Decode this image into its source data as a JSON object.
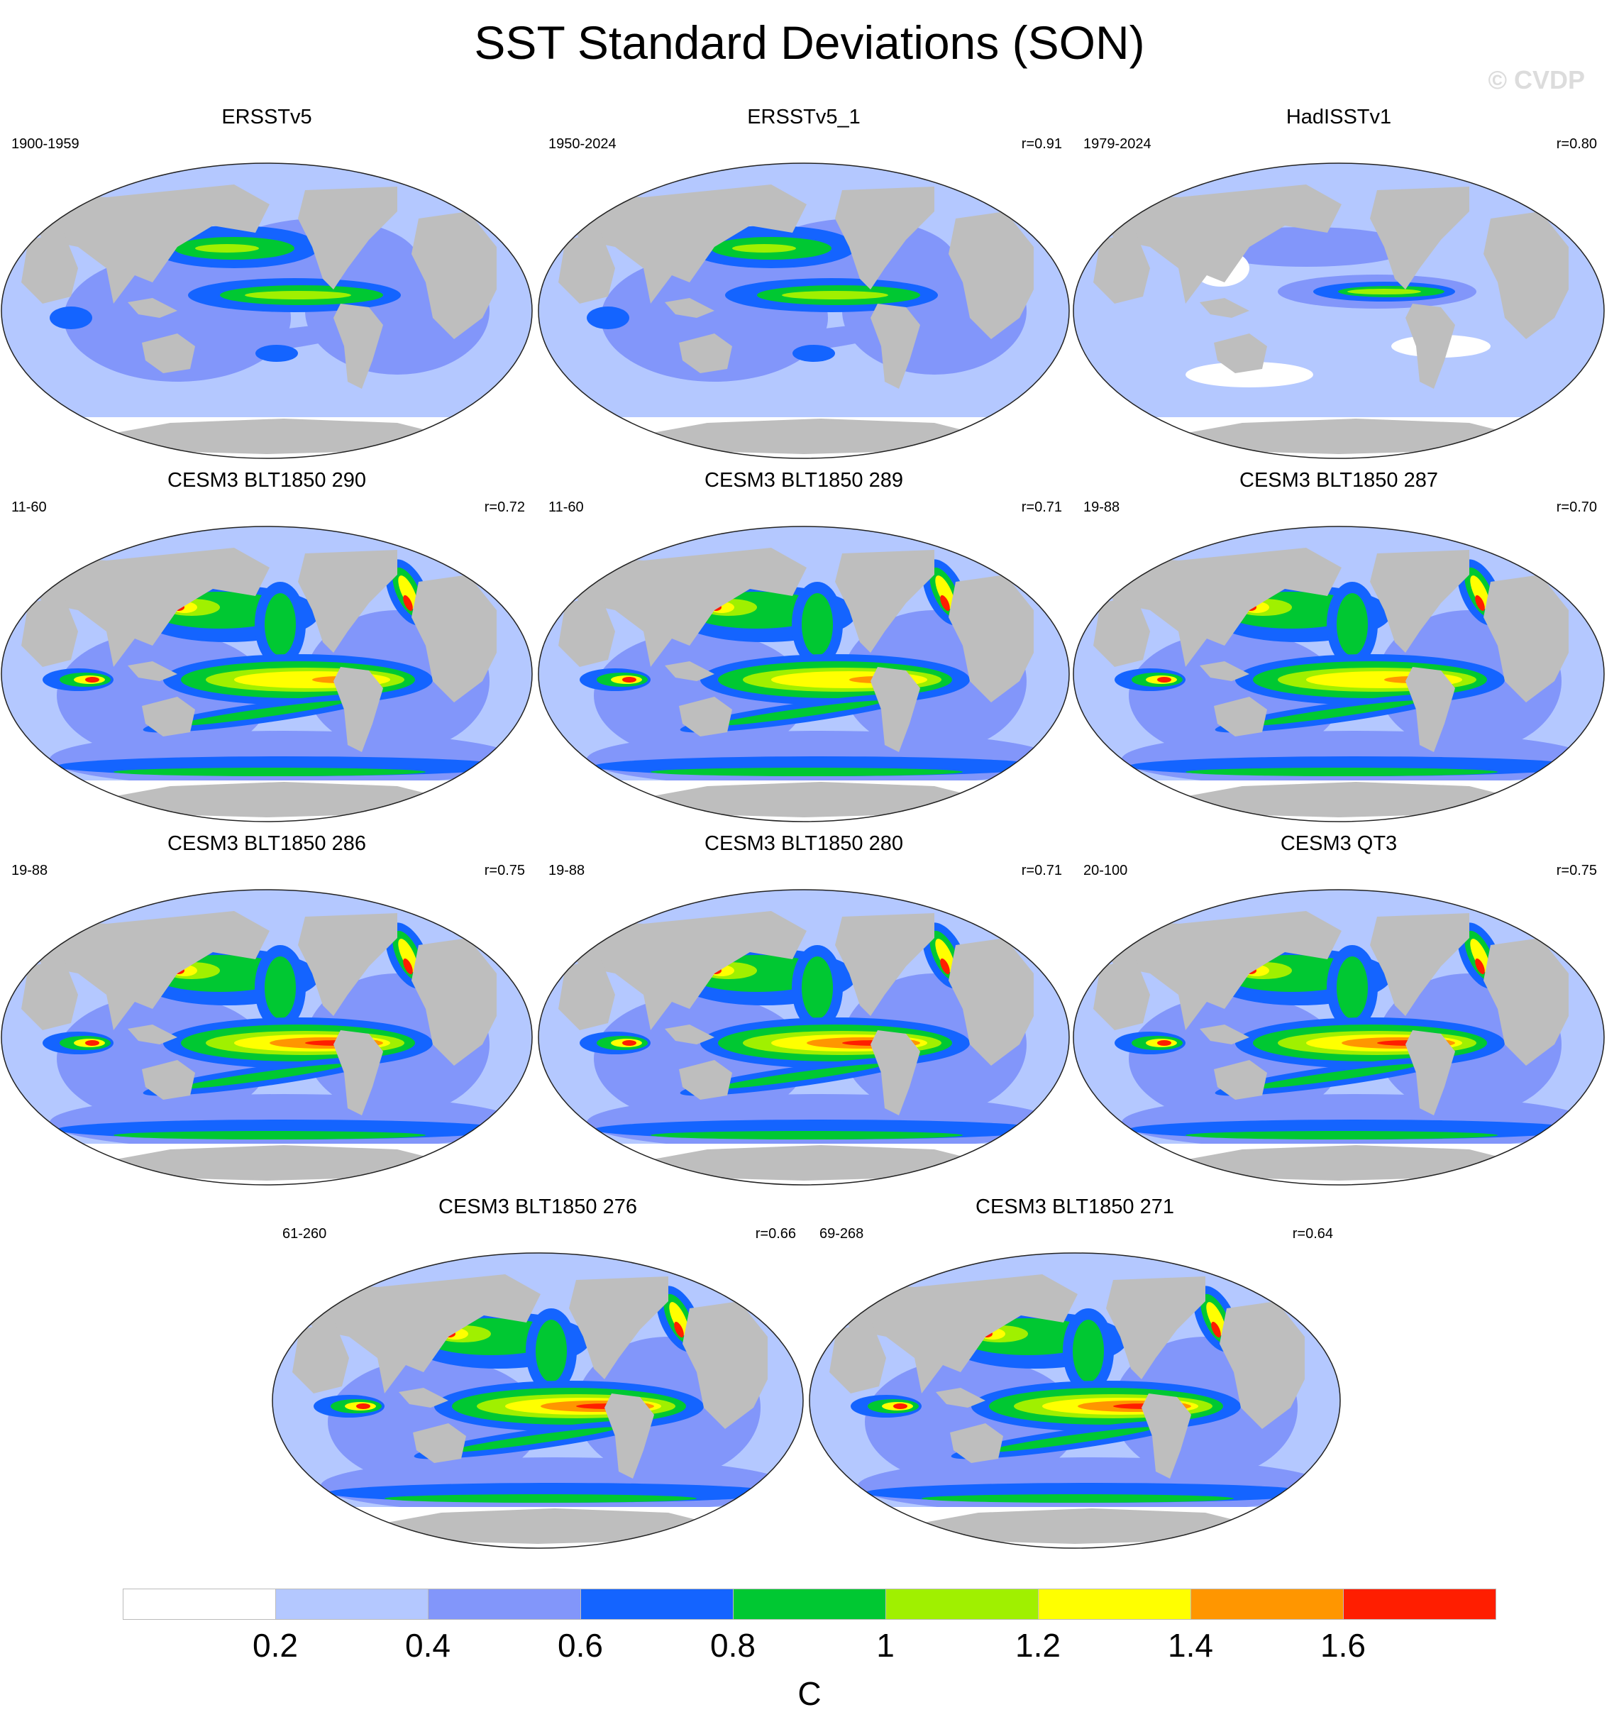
{
  "title": "SST Standard Deviations (SON)",
  "watermark": "© CVDP",
  "panels": [
    {
      "title": "ERSSTv5",
      "period": "1900-1959",
      "corr": "",
      "pattern": "obs"
    },
    {
      "title": "ERSSTv5_1",
      "period": "1950-2024",
      "corr": "r=0.91",
      "pattern": "obs"
    },
    {
      "title": "HadISSTv1",
      "period": "1979-2024",
      "corr": "r=0.80",
      "pattern": "obs-weak"
    },
    {
      "title": "CESM3 BLT1850 290",
      "period": "11-60",
      "corr": "r=0.72",
      "pattern": "model"
    },
    {
      "title": "CESM3 BLT1850 289",
      "period": "11-60",
      "corr": "r=0.71",
      "pattern": "model"
    },
    {
      "title": "CESM3 BLT1850 287",
      "period": "19-88",
      "corr": "r=0.70",
      "pattern": "model"
    },
    {
      "title": "CESM3 BLT1850 286",
      "period": "19-88",
      "corr": "r=0.75",
      "pattern": "model-strong"
    },
    {
      "title": "CESM3 BLT1850 280",
      "period": "19-88",
      "corr": "r=0.71",
      "pattern": "model-strong"
    },
    {
      "title": "CESM3 QT3",
      "period": "20-100",
      "corr": "r=0.75",
      "pattern": "model-strong"
    },
    {
      "title": "CESM3 BLT1850 276",
      "period": "61-260",
      "corr": "r=0.66",
      "pattern": "model-strong"
    },
    {
      "title": "CESM3 BLT1850 271",
      "period": "69-268",
      "corr": "r=0.64",
      "pattern": "model-strong"
    }
  ],
  "colorbar": {
    "unit": "C",
    "labels": [
      "0.2",
      "0.4",
      "0.6",
      "0.8",
      "1",
      "1.2",
      "1.4",
      "1.6"
    ],
    "colors": [
      "#ffffff",
      "#b4c8ff",
      "#8296fa",
      "#1464ff",
      "#00c832",
      "#a0f000",
      "#ffff00",
      "#ff9600",
      "#ff1e00"
    ]
  },
  "map_colors": {
    "land": "#bebebe",
    "ocean_low": "#b4c8ff",
    "ice": "#ffffff"
  }
}
